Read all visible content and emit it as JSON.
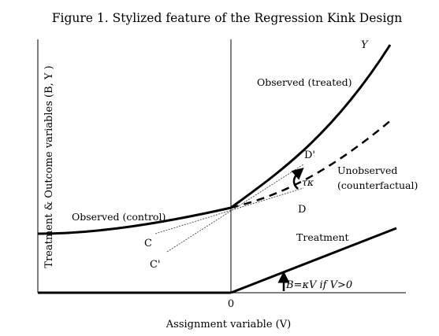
{
  "figure": {
    "title": "Figure 1. Stylized feature of the Regression Kink Design",
    "y_axis_label": "Treatment & Outcome variables (B, Y )",
    "x_axis_label": "Assignment variable (V)",
    "origin_label": "0",
    "curve_label_y": "Y",
    "observed_treated": "Observed (treated)",
    "observed_control": "Observed (control)",
    "unobserved_line1": "Unobserved",
    "unobserved_line2": "(counterfactual)",
    "treatment_label": "Treatment",
    "point_c": "C",
    "point_c_prime": "C'",
    "point_d": "D",
    "point_d_prime": "D'",
    "tau_kappa": "τκ",
    "treatment_eq": "B=κV if V>0",
    "colors": {
      "ink": "#000000",
      "background": "#ffffff"
    }
  }
}
